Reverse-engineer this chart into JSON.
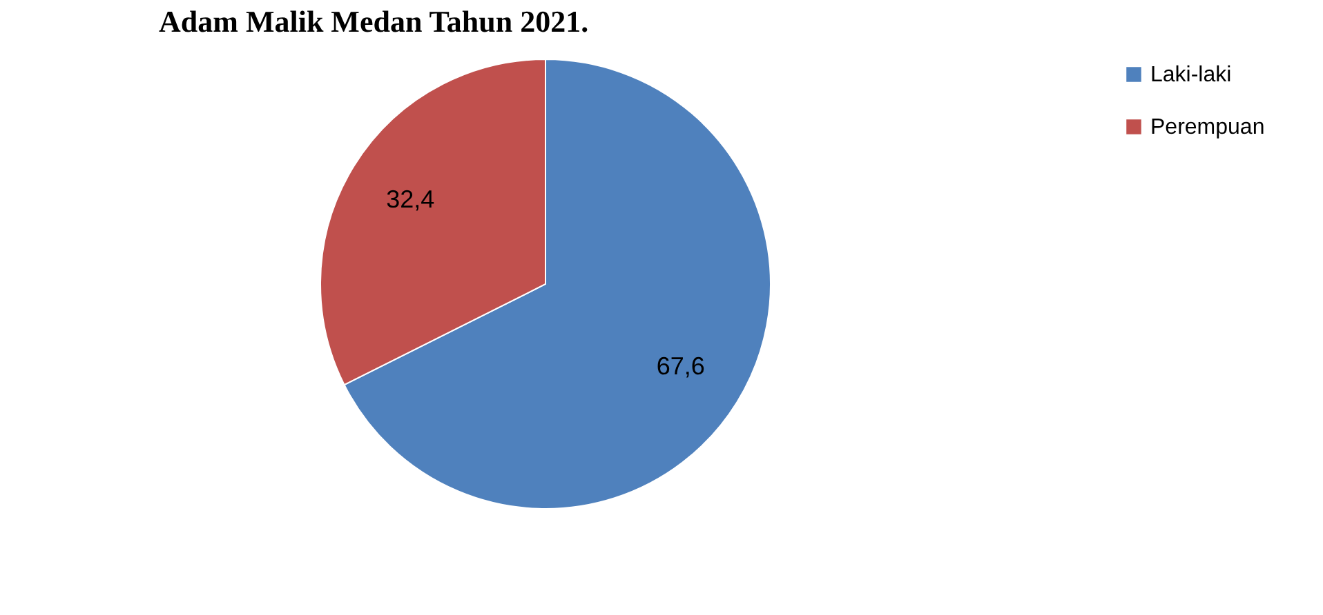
{
  "chart_data": {
    "type": "pie",
    "title": "Adam Malik Medan Tahun 2021.",
    "categories": [
      "Laki-laki",
      "Perempuan"
    ],
    "values": [
      67.6,
      32.4
    ],
    "value_labels": [
      "67,6",
      "32,4"
    ],
    "colors": [
      "#4f81bd",
      "#c0504d"
    ],
    "legend": "right"
  }
}
